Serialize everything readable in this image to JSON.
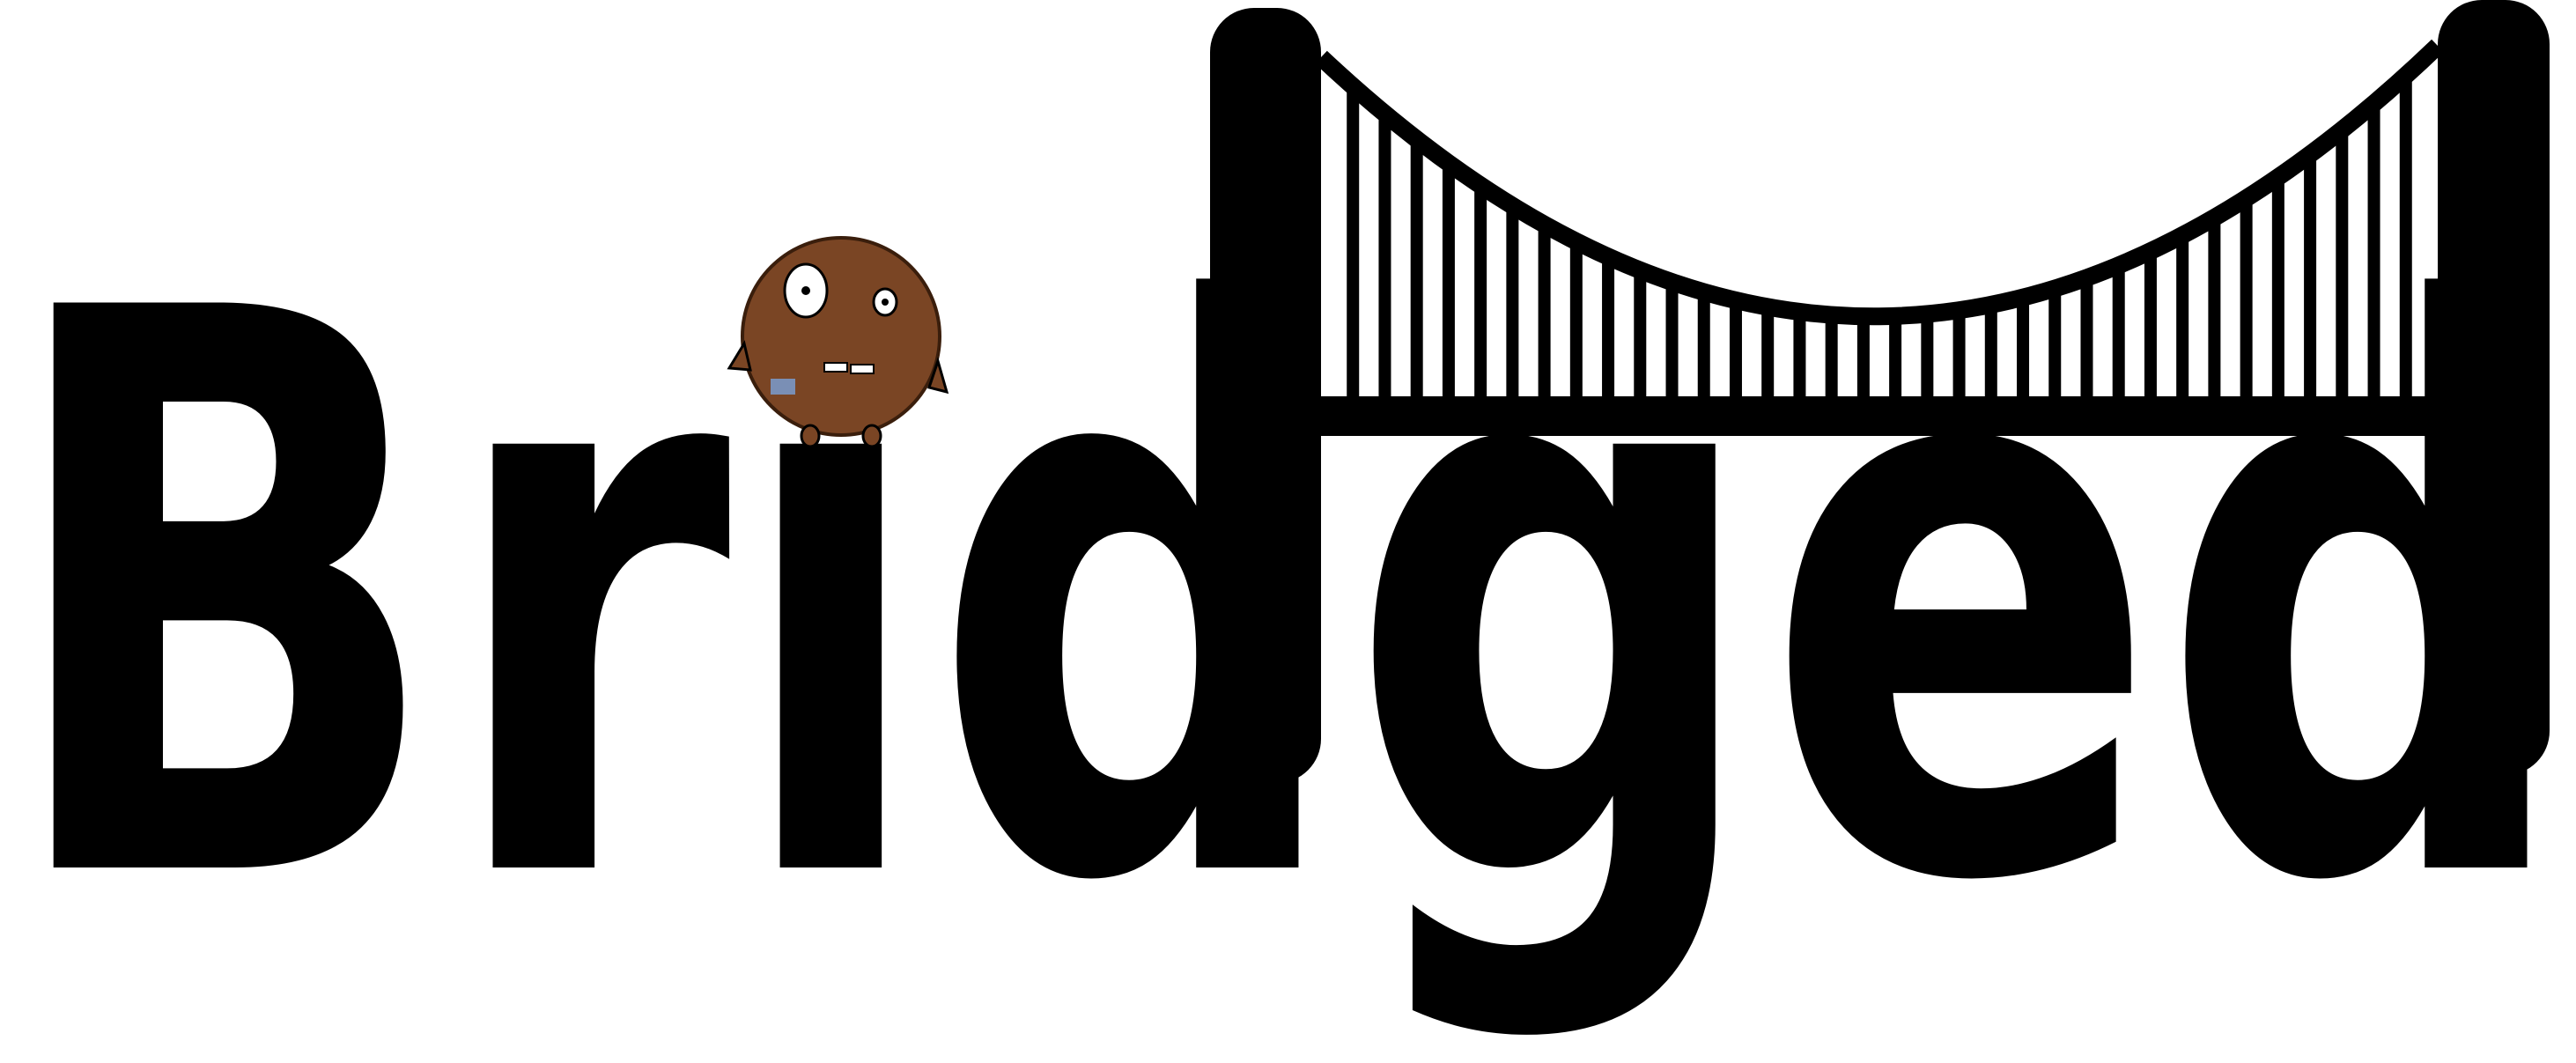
{
  "logo": {
    "text": "Bridged"
  }
}
